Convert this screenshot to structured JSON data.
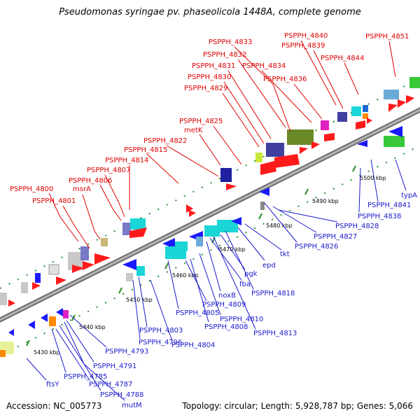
{
  "title": "Pseudomonas syringae pv. phaseolicola 1448A, complete genome",
  "accession": "Accession: NC_005773",
  "summary": "Topology: circular; Length: 5,928,787 bp; Genes: 5,066",
  "colors": {
    "forward_label": "#e00000",
    "reverse_label": "#1a1acc",
    "backbone": "#8a8a8a",
    "tick": "#1f8f1f"
  },
  "ticks": [
    {
      "label": "5430 kbp"
    },
    {
      "label": "5440 kbp"
    },
    {
      "label": "5450 kbp"
    },
    {
      "label": "5460 kbp"
    },
    {
      "label": "5470 kbp"
    },
    {
      "label": "5480 kbp"
    },
    {
      "label": "5490 kbp"
    },
    {
      "label": "5500 kbp"
    }
  ],
  "forward_labels": [
    "PSPPH_4800",
    "PSPPH_4801",
    "msrA",
    "PSPPH_4806",
    "PSPPH_4807",
    "PSPPH_4814",
    "PSPPH_4815",
    "PSPPH_4822",
    "metK",
    "PSPPH_4825",
    "PSPPH_4829",
    "PSPPH_4830",
    "PSPPH_4831",
    "PSPPH_4832",
    "PSPPH_4833",
    "PSPPH_4834",
    "PSPPH_4836",
    "PSPPH_4839",
    "PSPPH_4840",
    "PSPPH_4844",
    "PSPPH_4851"
  ],
  "reverse_labels": [
    "ftsY",
    "PSPPH_4785",
    "PSPPH_4787",
    "PSPPH_4788",
    "mutM",
    "PSPPH_4791",
    "PSPPH_4793",
    "PSPPH_4796",
    "PSPPH_4803",
    "PSPPH_4804",
    "PSPPH_4805",
    "PSPPH_4809",
    "PSPPH_4808",
    "PSPPH_4810",
    "noxB",
    "fba",
    "PSPPH_4813",
    "pgk",
    "PSPPH_4818",
    "epd",
    "tkt",
    "PSPPH_4826",
    "PSPPH_4827",
    "PSPPH_4828",
    "PSPPH_4838",
    "PSPPH_4841",
    "typA"
  ]
}
